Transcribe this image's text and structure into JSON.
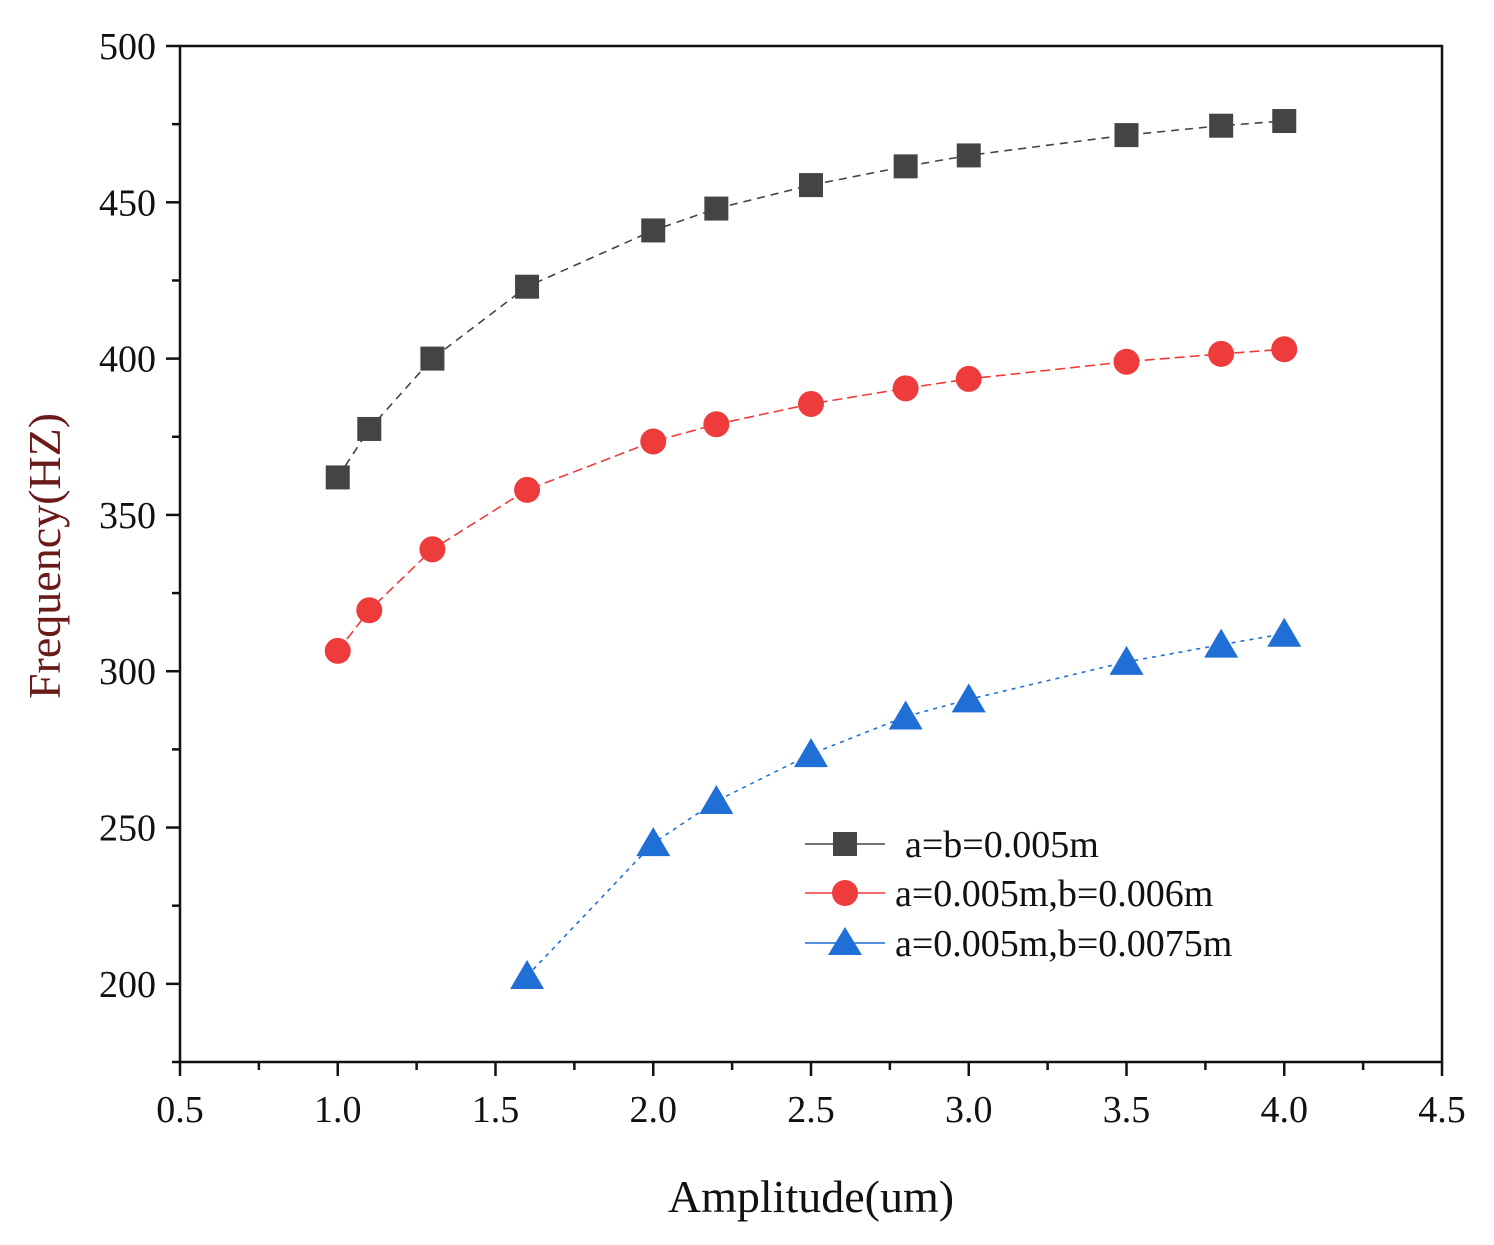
{
  "chart_data": {
    "type": "line",
    "title": "",
    "xlabel": "Amplitude(um)",
    "ylabel": "Frequency(HZ)",
    "xlim": [
      0.5,
      4.5
    ],
    "ylim": [
      175,
      500
    ],
    "x_ticks": [
      "0.5",
      "1.0",
      "1.5",
      "2.0",
      "2.5",
      "3.0",
      "3.5",
      "4.0",
      "4.5"
    ],
    "y_ticks": [
      "200",
      "250",
      "300",
      "350",
      "400",
      "450",
      "500"
    ],
    "grid": false,
    "legend_position": "lower-right",
    "colors": {
      "axis": "#111111",
      "ylabel": "#6b1a1a",
      "xlabel": "#111111"
    },
    "series": [
      {
        "name": "a=b=0.005m",
        "color": "#444444",
        "marker": "square",
        "x": [
          1.0,
          1.1,
          1.3,
          1.6,
          2.0,
          2.2,
          2.5,
          2.8,
          3.0,
          3.5,
          3.8,
          4.0
        ],
        "values": [
          362,
          377.5,
          400,
          423,
          441,
          448,
          455.5,
          461.5,
          465,
          471.5,
          474.5,
          476
        ]
      },
      {
        "name": "a=0.005m,b=0.006m",
        "color": "#ee3b3b",
        "marker": "circle",
        "x": [
          1.0,
          1.1,
          1.3,
          1.6,
          2.0,
          2.2,
          2.5,
          2.8,
          3.0,
          3.5,
          3.8,
          4.0
        ],
        "values": [
          306.5,
          319.5,
          339,
          358,
          373.5,
          379,
          385.5,
          390.5,
          393.5,
          399,
          401.5,
          403
        ]
      },
      {
        "name": "a=0.005m,b=0.0075m",
        "color": "#1f6fd6",
        "marker": "triangle",
        "x": [
          1.6,
          2.0,
          2.2,
          2.5,
          2.8,
          3.0,
          3.5,
          3.8,
          4.0
        ],
        "values": [
          202.5,
          245,
          258.5,
          273.5,
          285.5,
          291,
          303,
          308.5,
          312
        ]
      }
    ]
  }
}
